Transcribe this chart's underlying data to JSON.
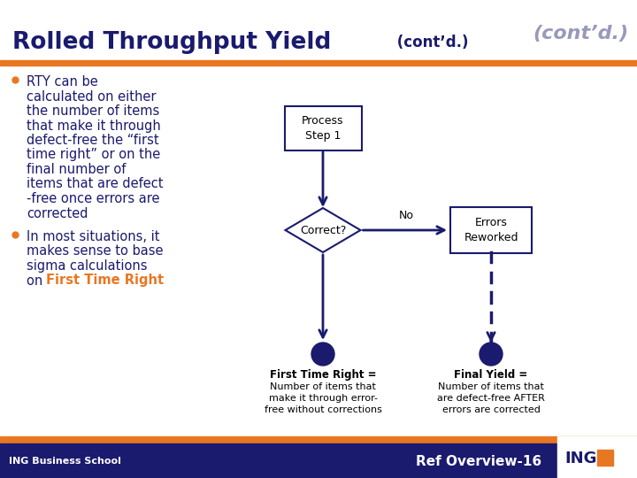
{
  "title_bold": "Rolled Throughput Yield",
  "title_contd": " (cont’d.)",
  "title_italic_tr": "(cont’d.)",
  "bg_color": "#ffffff",
  "dark_blue": "#1a1a6e",
  "orange": "#e87722",
  "gray_italic": "#9999bb",
  "bullet1_lines": [
    "RTY can be",
    "calculated on either",
    "the number of items",
    "that make it through",
    "defect-free the “first",
    "time right” or on the",
    "final number of",
    "items that are defect",
    "-free once errors are",
    "corrected"
  ],
  "bullet2_lines": [
    "In most situations, it",
    "makes sense to base",
    "sigma calculations",
    "on "
  ],
  "bullet2_highlight": "First Time Right",
  "footer_left": "ING Business School",
  "footer_right": "Ref Overview-16",
  "process_box_text": "Process\nStep 1",
  "diamond_text": "Correct?",
  "no_label": "No",
  "errors_box_text": "Errors\nReworked",
  "ftr_label": "First Time Right =",
  "ftr_desc": "Number of items that\nmake it through error-\nfree without corrections",
  "fy_label": "Final Yield =",
  "fy_desc": "Number of items that\nare defect-free AFTER\nerrors are corrected"
}
